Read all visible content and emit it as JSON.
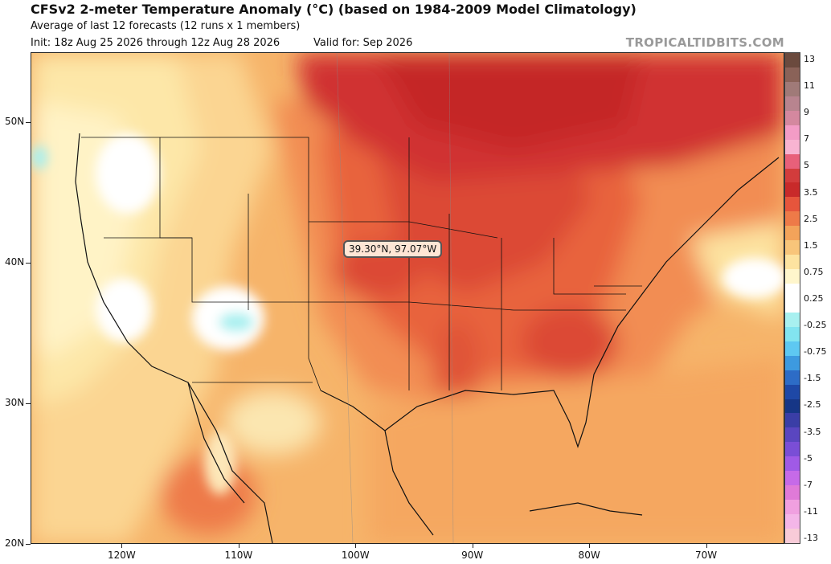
{
  "header": {
    "title": "CFSv2 2-meter Temperature Anomaly (°C) (based on 1984-2009 Model Climatology)",
    "subtitle": "Average of last 12 forecasts (12 runs x 1 members)",
    "init": "Init: 18z Aug 25 2026 through 12z Aug 28 2026",
    "valid": "Valid for: Sep 2026",
    "brand": "TROPICALTIDBITS.COM"
  },
  "map": {
    "tooltip": "39.30°N, 97.07°W",
    "lat_ticks": [
      {
        "label": "50N",
        "lat": 50
      },
      {
        "label": "40N",
        "lat": 40
      },
      {
        "label": "30N",
        "lat": 30
      },
      {
        "label": "20N",
        "lat": 20
      }
    ],
    "lon_ticks": [
      {
        "label": "120W",
        "lon": -120
      },
      {
        "label": "110W",
        "lon": -110
      },
      {
        "label": "100W",
        "lon": -100
      },
      {
        "label": "90W",
        "lon": -90
      },
      {
        "label": "80W",
        "lon": -80
      },
      {
        "label": "70W",
        "lon": -70
      }
    ],
    "extent": {
      "lon_min": -127.8,
      "lon_max": -63.3,
      "lat_min": 20,
      "lat_max": 55
    }
  },
  "colorbar": {
    "labels": [
      "13",
      "11",
      "9",
      "7",
      "5",
      "3.5",
      "2.5",
      "1.5",
      "0.75",
      "0.25",
      "-0.25",
      "-0.75",
      "-1.5",
      "-2.5",
      "-3.5",
      "-5",
      "-7",
      "-11",
      "-13"
    ],
    "colors": [
      "#6b4a3e",
      "#8a6258",
      "#a07a78",
      "#b8848f",
      "#d4889f",
      "#f39cc6",
      "#f8b4d2",
      "#e8607a",
      "#d23c3c",
      "#c82a2a",
      "#e6553c",
      "#ee7a48",
      "#f3a35a",
      "#f8c57a",
      "#fde3a0",
      "#fff6cc",
      "#ffffff",
      "#ffffff",
      "#a8f0f0",
      "#82e4f0",
      "#5ec8f2",
      "#3d9ae0",
      "#2d6cc6",
      "#1e48a6",
      "#163686",
      "#3a3ea6",
      "#5a46c0",
      "#7a4ed6",
      "#a05ae6",
      "#c66ae8",
      "#e07ad8",
      "#f0a0e0",
      "#f4b6e8",
      "#f8cbd8"
    ]
  }
}
